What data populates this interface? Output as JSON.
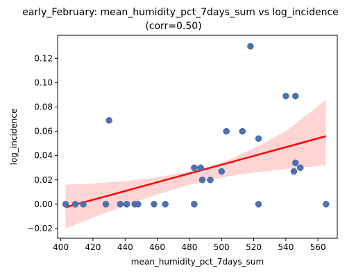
{
  "chart_data": {
    "type": "scatter",
    "title_line1": "early_February: mean_humidity_pct_7days_sum vs log_incidence",
    "title_line2": "(corr=0.50)",
    "xlabel": "mean_humidity_pct_7days_sum",
    "ylabel": "log_incidence",
    "xlim": [
      398,
      572
    ],
    "ylim": [
      -0.028,
      0.139
    ],
    "xticks": [
      400,
      420,
      440,
      460,
      480,
      500,
      520,
      540,
      560
    ],
    "yticks": [
      -0.02,
      0.0,
      0.02,
      0.04,
      0.06,
      0.08,
      0.1,
      0.12
    ],
    "ytick_labels": [
      "−0.02",
      "0.00",
      "0.02",
      "0.04",
      "0.06",
      "0.08",
      "0.10",
      "0.12"
    ],
    "points": [
      {
        "x": 403,
        "y": 0.0
      },
      {
        "x": 409,
        "y": 0.0
      },
      {
        "x": 414,
        "y": 0.0
      },
      {
        "x": 428,
        "y": 0.0
      },
      {
        "x": 430,
        "y": 0.069
      },
      {
        "x": 437,
        "y": 0.0
      },
      {
        "x": 441,
        "y": 0.0
      },
      {
        "x": 446,
        "y": 0.0
      },
      {
        "x": 448,
        "y": 0.0
      },
      {
        "x": 458,
        "y": 0.0
      },
      {
        "x": 465,
        "y": 0.0
      },
      {
        "x": 483,
        "y": 0.0
      },
      {
        "x": 483,
        "y": 0.03
      },
      {
        "x": 487,
        "y": 0.03
      },
      {
        "x": 488,
        "y": 0.02
      },
      {
        "x": 493,
        "y": 0.02
      },
      {
        "x": 500,
        "y": 0.027
      },
      {
        "x": 503,
        "y": 0.06
      },
      {
        "x": 513,
        "y": 0.06
      },
      {
        "x": 518,
        "y": 0.13
      },
      {
        "x": 523,
        "y": 0.054
      },
      {
        "x": 523,
        "y": 0.0
      },
      {
        "x": 540,
        "y": 0.089
      },
      {
        "x": 545,
        "y": 0.027
      },
      {
        "x": 546,
        "y": 0.034
      },
      {
        "x": 546,
        "y": 0.089
      },
      {
        "x": 549,
        "y": 0.03
      },
      {
        "x": 565,
        "y": 0.0
      }
    ],
    "regression": {
      "x": [
        403,
        565
      ],
      "y": [
        -0.0025,
        0.056
      ]
    },
    "confidence_band": {
      "x": [
        403,
        420,
        440,
        460,
        480,
        500,
        520,
        540,
        565
      ],
      "lower": [
        -0.02,
        -0.011,
        -0.001,
        0.008,
        0.016,
        0.022,
        0.026,
        0.029,
        0.032
      ],
      "upper": [
        0.016,
        0.017,
        0.019,
        0.022,
        0.027,
        0.034,
        0.046,
        0.06,
        0.086
      ]
    },
    "grid": false,
    "colors": {
      "point": "#4c72b0",
      "line": "#ff0000",
      "band": "#ffcccc"
    }
  }
}
